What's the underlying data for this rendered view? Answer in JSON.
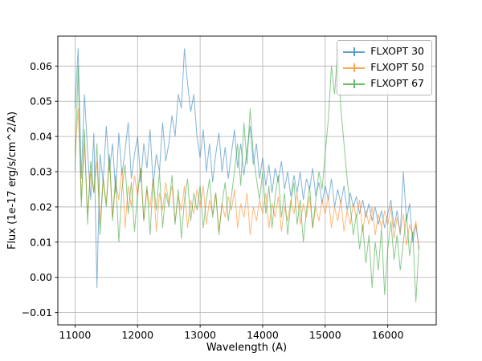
{
  "figure": {
    "background": "#ffffff"
  },
  "chart_data": {
    "type": "line",
    "title": "",
    "xlabel": "Wavelength (A)",
    "ylabel": "Flux (1e-17 erg/s/cm^2/A)",
    "xlim": [
      10725,
      16775
    ],
    "ylim": [
      -0.0135,
      0.0685
    ],
    "xticks": [
      11000,
      12000,
      13000,
      14000,
      15000,
      16000
    ],
    "yticks": [
      -0.01,
      0.0,
      0.01,
      0.02,
      0.03,
      0.04,
      0.05,
      0.06
    ],
    "grid": true,
    "grid_color": "#b0b0b0",
    "legend_position": "upper right",
    "x_start": 11000,
    "x_step": 50,
    "series": [
      {
        "name": "FLXOPT 30",
        "color": "#1f77b4",
        "alpha": 0.55,
        "values": [
          0.048,
          0.065,
          0.028,
          0.052,
          0.036,
          0.022,
          0.041,
          -0.003,
          0.035,
          0.027,
          0.043,
          0.03,
          0.038,
          0.024,
          0.041,
          0.029,
          0.036,
          0.044,
          0.028,
          0.035,
          0.04,
          0.027,
          0.038,
          0.031,
          0.042,
          0.026,
          0.035,
          0.03,
          0.044,
          0.033,
          0.038,
          0.046,
          0.04,
          0.052,
          0.048,
          0.065,
          0.055,
          0.047,
          0.052,
          0.04,
          0.034,
          0.042,
          0.03,
          0.038,
          0.027,
          0.035,
          0.041,
          0.03,
          0.037,
          0.028,
          0.035,
          0.042,
          0.031,
          0.038,
          0.029,
          0.036,
          0.043,
          0.032,
          0.038,
          0.028,
          0.034,
          0.026,
          0.032,
          0.024,
          0.031,
          0.027,
          0.033,
          0.025,
          0.03,
          0.023,
          0.029,
          0.024,
          0.03,
          0.022,
          0.028,
          0.025,
          0.031,
          0.023,
          0.027,
          0.021,
          0.026,
          0.022,
          0.028,
          0.02,
          0.025,
          0.021,
          0.026,
          0.019,
          0.024,
          0.02,
          0.023,
          0.018,
          0.022,
          0.017,
          0.021,
          0.016,
          0.02,
          0.015,
          0.019,
          0.014,
          0.018,
          0.022,
          0.014,
          0.019,
          0.012,
          0.03,
          0.016,
          0.021,
          0.01,
          0.015,
          0.008
        ]
      },
      {
        "name": "FLXOPT 50",
        "color": "#ff7f0e",
        "alpha": 0.55,
        "values": [
          0.035,
          0.048,
          0.022,
          0.038,
          0.018,
          0.03,
          0.024,
          0.033,
          0.015,
          0.028,
          0.021,
          0.034,
          0.017,
          0.027,
          0.022,
          0.031,
          0.014,
          0.026,
          0.02,
          0.029,
          0.023,
          0.031,
          0.016,
          0.025,
          0.02,
          0.028,
          0.013,
          0.024,
          0.019,
          0.027,
          0.021,
          0.026,
          0.016,
          0.023,
          0.019,
          0.026,
          0.014,
          0.022,
          0.018,
          0.025,
          0.02,
          0.026,
          0.015,
          0.022,
          0.018,
          0.024,
          0.013,
          0.021,
          0.017,
          0.023,
          0.019,
          0.025,
          0.014,
          0.021,
          0.017,
          0.024,
          0.012,
          0.02,
          0.016,
          0.022,
          0.018,
          0.024,
          0.014,
          0.021,
          0.017,
          0.023,
          0.013,
          0.02,
          0.016,
          0.022,
          0.018,
          0.024,
          0.015,
          0.021,
          0.017,
          0.023,
          0.014,
          0.02,
          0.016,
          0.022,
          0.018,
          0.023,
          0.014,
          0.02,
          0.016,
          0.022,
          0.013,
          0.019,
          0.015,
          0.021,
          0.017,
          0.022,
          0.013,
          0.019,
          0.015,
          0.02,
          0.012,
          0.018,
          0.014,
          0.019,
          0.015,
          0.02,
          0.011,
          0.017,
          0.013,
          0.018,
          0.009,
          0.015,
          0.012,
          0.016,
          0.008
        ]
      },
      {
        "name": "FLXOPT 67",
        "color": "#2ca02c",
        "alpha": 0.55,
        "values": [
          0.03,
          0.06,
          0.02,
          0.042,
          0.015,
          0.033,
          0.024,
          0.038,
          0.012,
          0.028,
          0.02,
          0.035,
          0.016,
          0.029,
          0.01,
          0.025,
          0.032,
          0.018,
          0.027,
          0.013,
          0.024,
          0.031,
          0.016,
          0.026,
          0.012,
          0.028,
          0.019,
          0.03,
          0.014,
          0.024,
          0.02,
          0.029,
          0.015,
          0.025,
          0.011,
          0.022,
          0.028,
          0.016,
          0.024,
          0.019,
          0.026,
          0.014,
          0.022,
          0.028,
          0.017,
          0.024,
          0.012,
          0.021,
          0.027,
          0.016,
          0.023,
          0.03,
          0.038,
          0.026,
          0.044,
          0.032,
          0.048,
          0.035,
          0.028,
          0.022,
          0.03,
          0.018,
          0.026,
          0.014,
          0.023,
          0.029,
          0.017,
          0.024,
          0.012,
          0.021,
          0.027,
          0.015,
          0.022,
          0.01,
          0.019,
          0.026,
          0.014,
          0.022,
          0.03,
          0.025,
          0.035,
          0.045,
          0.06,
          0.052,
          0.065,
          0.048,
          0.038,
          0.028,
          0.02,
          0.012,
          0.018,
          0.008,
          0.015,
          0.004,
          0.012,
          -0.003,
          0.01,
          0.002,
          0.014,
          -0.005,
          0.008,
          0.016,
          0.005,
          0.012,
          0.002,
          0.01,
          0.018,
          0.006,
          0.013,
          -0.007,
          0.009
        ]
      }
    ]
  }
}
